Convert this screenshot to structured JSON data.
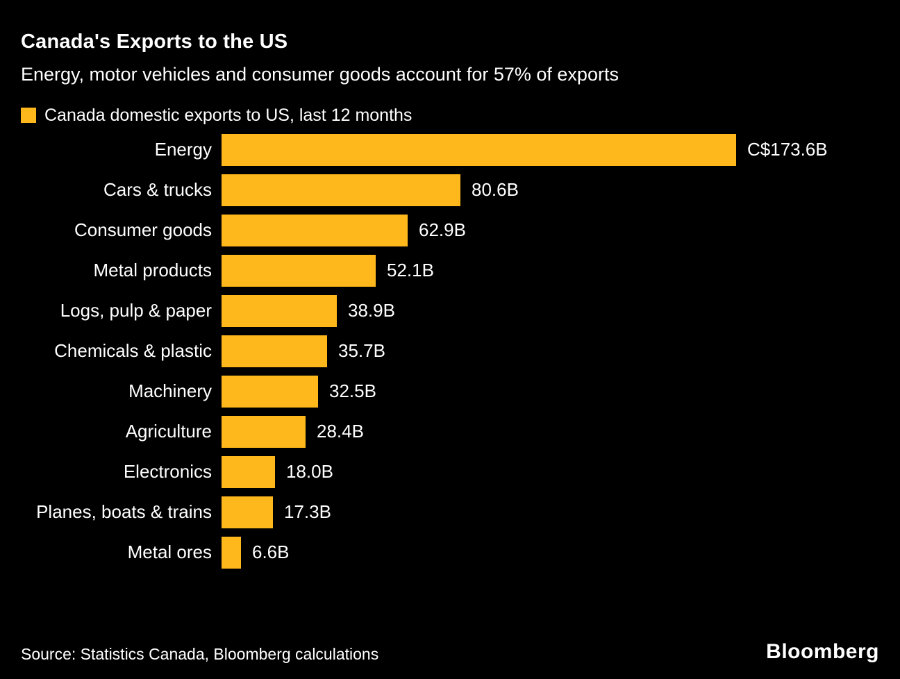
{
  "header": {
    "title": "Canada's Exports to the US",
    "subtitle": "Energy, motor vehicles and consumer goods account for 57% of exports"
  },
  "legend": {
    "label": "Canada domestic exports to US, last 12 months",
    "swatch_color": "#FFB81C",
    "swatch_icon": "legend-swatch-square"
  },
  "chart_data": {
    "type": "bar",
    "orientation": "horizontal",
    "title": "Canada's Exports to the US",
    "subtitle": "Energy, motor vehicles and consumer goods account for 57% of exports",
    "series_name": "Canada domestic exports to US, last 12 months",
    "unit": "C$ billions",
    "categories": [
      "Energy",
      "Cars & trucks",
      "Consumer goods",
      "Metal products",
      "Logs, pulp & paper",
      "Chemicals & plastic",
      "Machinery",
      "Agriculture",
      "Electronics",
      "Planes, boats & trains",
      "Metal ores"
    ],
    "values": [
      173.6,
      80.6,
      62.9,
      52.1,
      38.9,
      35.7,
      32.5,
      28.4,
      18.0,
      17.3,
      6.6
    ],
    "value_labels": [
      "C$173.6B",
      "80.6B",
      "62.9B",
      "52.1B",
      "38.9B",
      "35.7B",
      "32.5B",
      "28.4B",
      "18.0B",
      "17.3B",
      "6.6B"
    ],
    "xlim": [
      0,
      180
    ],
    "grid": false,
    "legend_position": "top-left",
    "bar_color": "#FFB81C",
    "background_color": "#000000",
    "text_color": "#FFFFFF"
  },
  "footer": {
    "source": "Source: Statistics Canada, Bloomberg calculations",
    "brand": "Bloomberg"
  }
}
